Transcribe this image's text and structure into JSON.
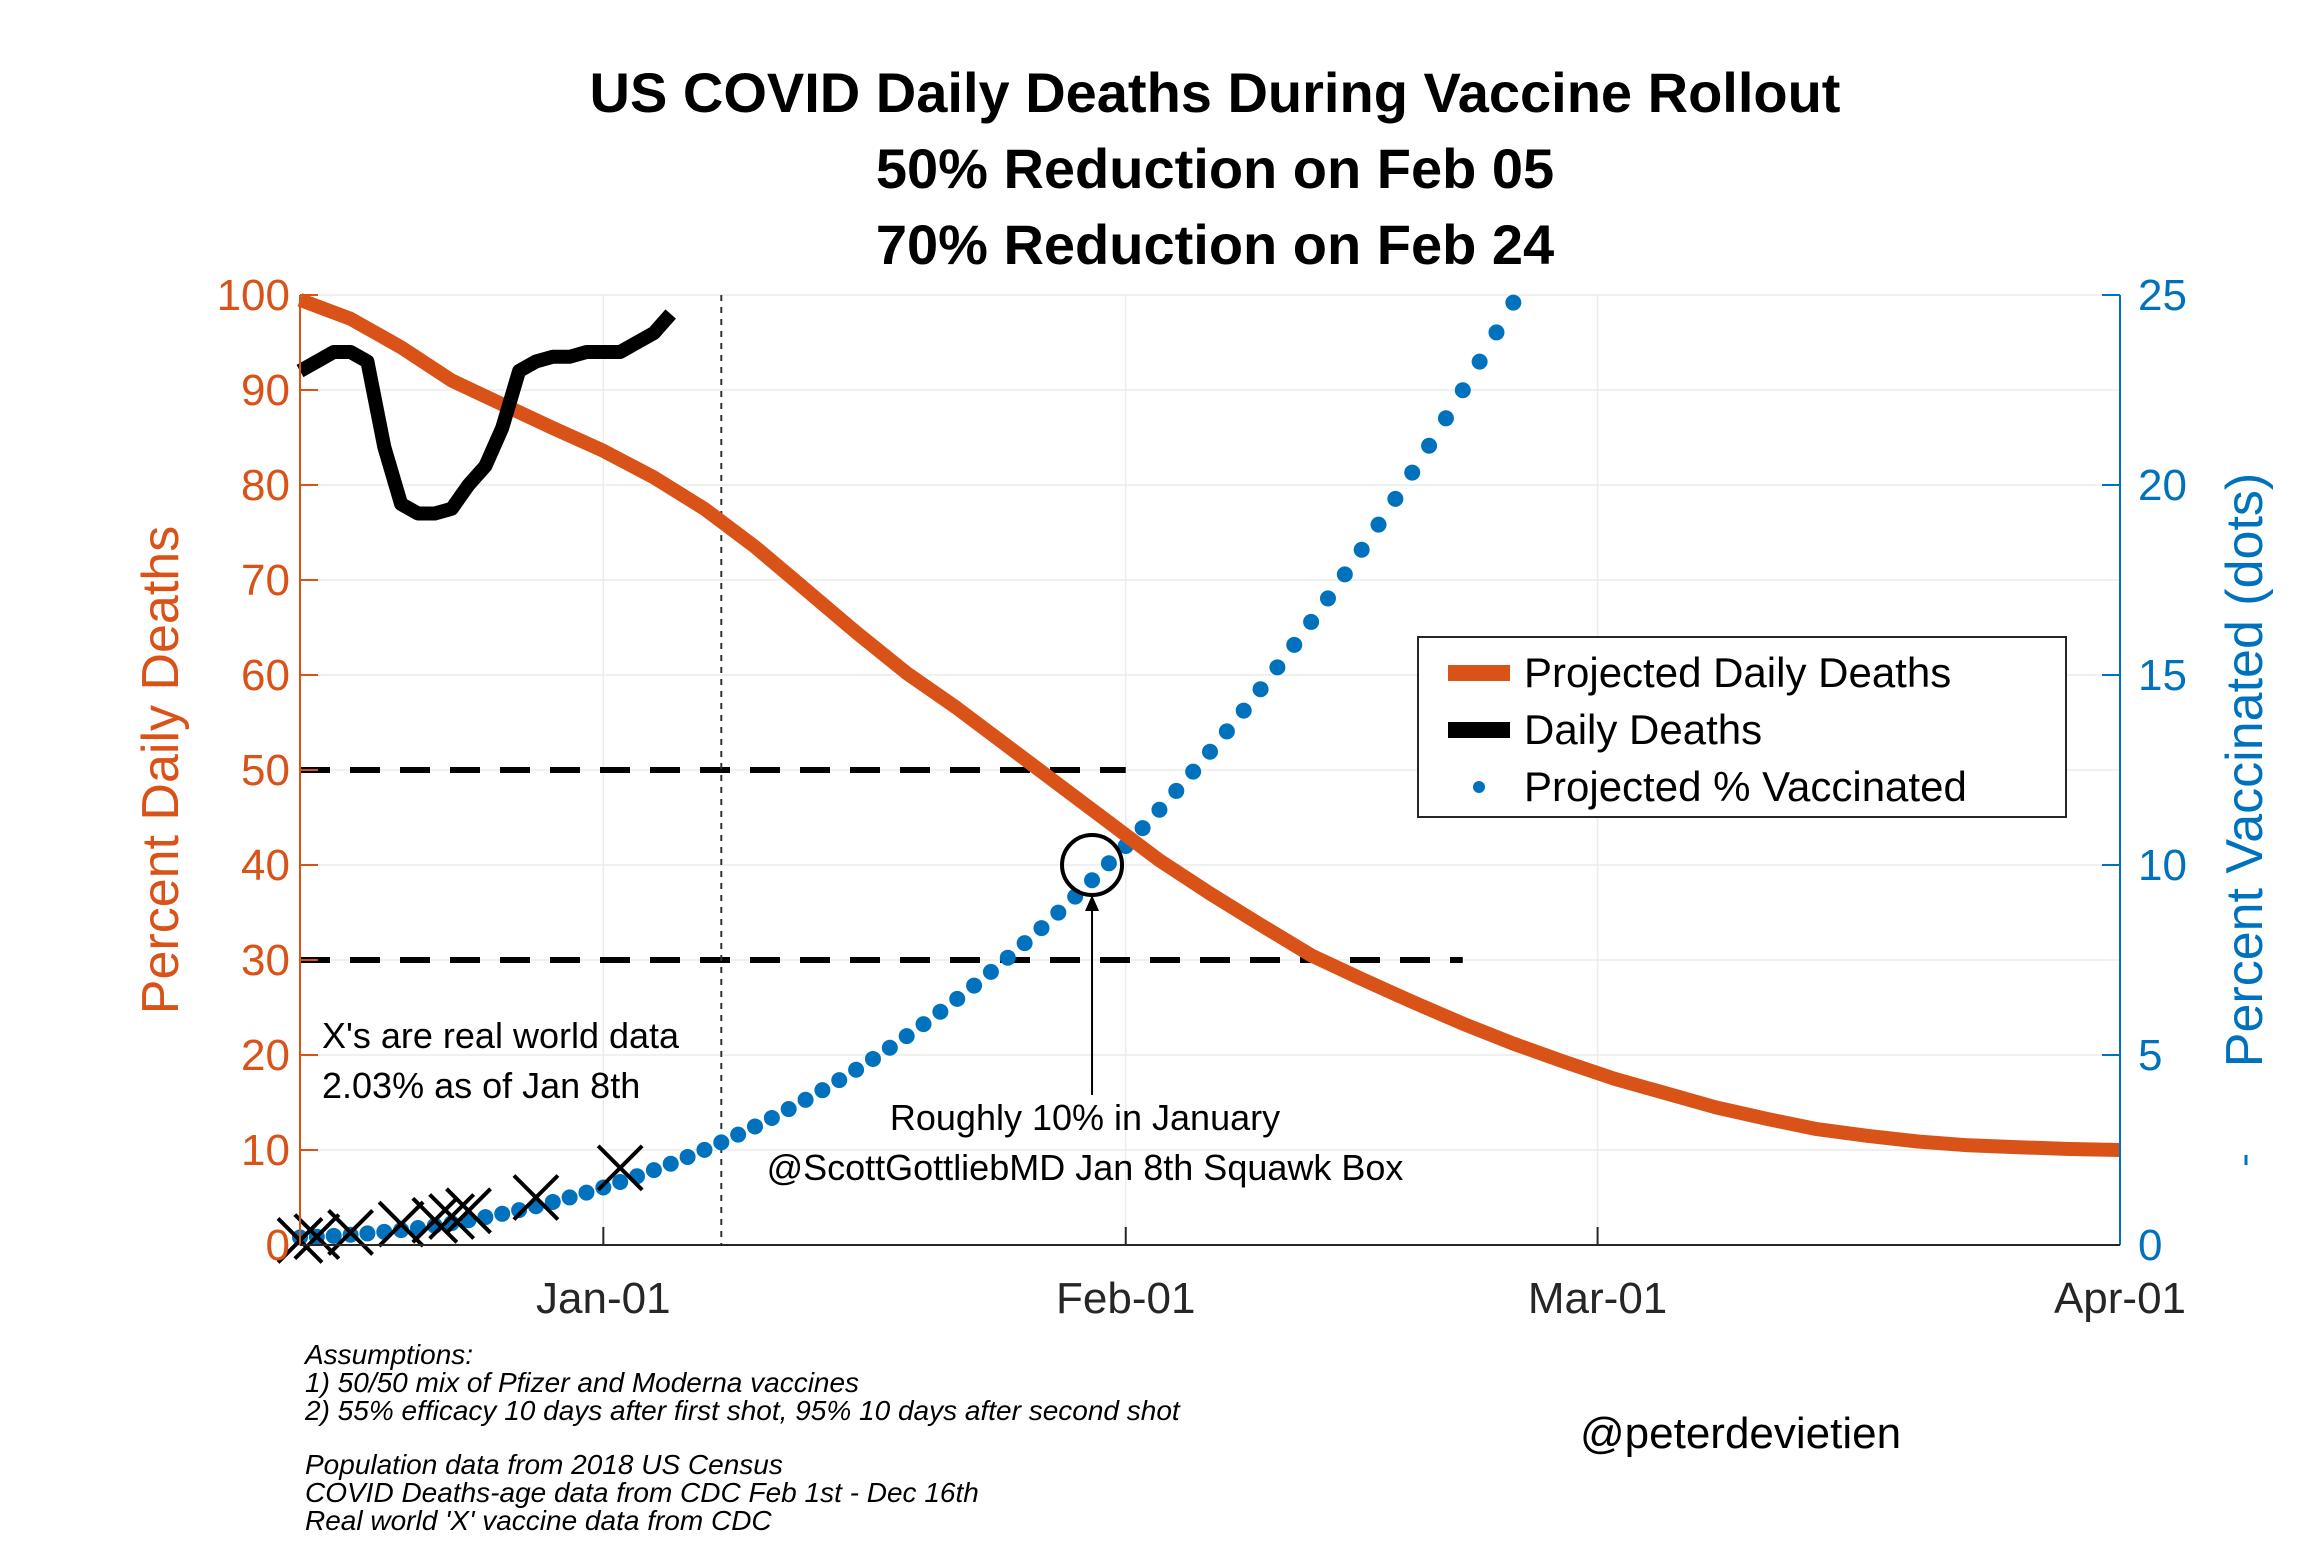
{
  "chart_data": {
    "type": "line",
    "title_lines": [
      "US COVID Daily Deaths During Vaccine Rollout",
      "50% Reduction on Feb 05",
      "70% Reduction on Feb 24"
    ],
    "ylabel_left": "Percent Daily Deaths",
    "ylabel_right": "Percent Vaccinated (dots)",
    "x_axis": {
      "start": "Dec 14",
      "end": "Apr 01",
      "tick_labels": [
        "Jan-01",
        "Feb-01",
        "Mar-01",
        "Apr-01"
      ],
      "tick_days": [
        18,
        49,
        77,
        108
      ],
      "total_days": 108
    },
    "ylim_left": [
      0,
      100
    ],
    "yticks_left": [
      "0",
      "10",
      "20",
      "30",
      "40",
      "50",
      "60",
      "70",
      "80",
      "90",
      "100"
    ],
    "ylim_right": [
      0,
      25
    ],
    "yticks_right": [
      "0",
      "5",
      "10",
      "15",
      "20",
      "25"
    ],
    "grid": true,
    "legend": {
      "position": "center-right",
      "entries": [
        "Projected Daily Deaths",
        "Daily Deaths",
        "Projected % Vaccinated"
      ]
    },
    "series": [
      {
        "name": "Projected Daily Deaths",
        "axis": "left",
        "color": "#D95319",
        "style": "thick-line",
        "x": [
          0,
          3,
          6,
          9,
          12,
          15,
          18,
          21,
          24,
          27,
          30,
          33,
          36,
          39,
          42,
          45,
          48,
          51,
          54,
          57,
          60,
          63,
          66,
          69,
          72,
          75,
          78,
          81,
          84,
          87,
          90,
          93,
          96,
          99,
          102,
          105,
          108
        ],
        "y": [
          99.5,
          97.5,
          94.5,
          91,
          88.5,
          86,
          83.6,
          80.8,
          77.5,
          73.5,
          69,
          64.5,
          60.2,
          56.5,
          52.5,
          48.5,
          44.5,
          40.5,
          37,
          33.7,
          30.5,
          28,
          25.6,
          23.3,
          21.2,
          19.3,
          17.5,
          16,
          14.5,
          13.3,
          12.2,
          11.5,
          10.9,
          10.5,
          10.3,
          10.1,
          10.0
        ]
      },
      {
        "name": "Daily Deaths",
        "axis": "left",
        "color": "#000000",
        "style": "thick-line",
        "x": [
          0,
          1,
          2,
          3,
          4,
          5,
          6,
          7,
          8,
          9,
          10,
          11,
          12,
          13,
          14,
          15,
          16,
          17,
          18,
          19,
          20,
          21,
          22
        ],
        "y": [
          92,
          93,
          94,
          94,
          93,
          84,
          78,
          77,
          77,
          77.5,
          80,
          82,
          86,
          92,
          93,
          93.5,
          93.5,
          94,
          94,
          94,
          95,
          96,
          98
        ]
      },
      {
        "name": "Projected % Vaccinated",
        "axis": "right",
        "color": "#0072BD",
        "style": "dots",
        "x_start": 0,
        "x_step": 1,
        "x_end": 72,
        "y_at_day_0": 0.2,
        "y_at_day_25": 2.7,
        "y_at_day_47": 9.6,
        "y_at_day_72": 24.8
      },
      {
        "name": "Real world vaccination data",
        "axis": "right",
        "color": "#000000",
        "style": "x-markers",
        "x": [
          0,
          1,
          3,
          6,
          8,
          9,
          10,
          14,
          19
        ],
        "y": [
          0.12,
          0.22,
          0.33,
          0.55,
          0.65,
          0.75,
          0.9,
          1.25,
          2.03
        ]
      }
    ],
    "reference_lines": {
      "dashed_horizontal": [
        {
          "y": 50,
          "x_from": 0,
          "x_to": 49
        },
        {
          "y": 30,
          "x_from": 0,
          "x_to": 69
        }
      ],
      "dotted_vertical": {
        "x": 25
      }
    },
    "annotations": {
      "real_world_note": [
        "X's are real world data",
        "2.03% as of Jan 8th"
      ],
      "gottlieb_note": [
        "Roughly 10% in January",
        "@ScottGottliebMD Jan 8th Squawk Box"
      ],
      "circle_at": {
        "x": 47,
        "y_right": 10
      }
    }
  },
  "footnotes": {
    "assumptions": [
      "Assumptions:",
      "1) 50/50 mix of Pfizer and Moderna vaccines",
      "2) 55% efficacy 10 days after first shot, 95% 10 days after second shot"
    ],
    "sources": [
      "Population data from 2018 US Census",
      "COVID Deaths-age data from CDC Feb 1st - Dec 16th",
      "Real world 'X' vaccine data from CDC"
    ]
  },
  "author_handle": "@peterdevietien"
}
